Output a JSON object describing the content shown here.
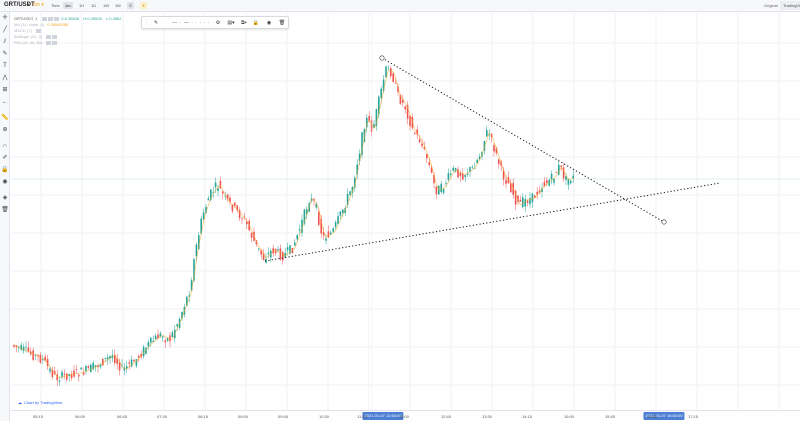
{
  "topbar": {
    "symbol": "GRT/USDT",
    "timeframe_label": "Time",
    "timeframes": [
      "1m",
      "1H",
      "1D",
      "1W",
      "1M"
    ],
    "active_timeframe": "1m",
    "right_links": [
      "Original",
      "TradingView"
    ]
  },
  "legend": {
    "pair": "GRTUSDT, 1",
    "open": "O:0.39526",
    "high": "H:0.39526",
    "low": "L:0.3952",
    "ma_label": "MA (14, close, 0)",
    "ma_value": "0.39548289",
    "ind2": "MACD (7)",
    "ind3": "Bollinger (20, 2)",
    "ind4": "RSI (14, 40, 60)"
  },
  "xaxis": {
    "ticks": [
      "05:15",
      "06:00",
      "06:45",
      "07:30",
      "08:15",
      "09:00",
      "09:45",
      "10:30",
      "11:15",
      "12:00",
      "12:45",
      "13:30",
      "14:15",
      "15:00",
      "15:45",
      "16:30",
      "17:15"
    ],
    "cursor_left": "2021-01-07 12:53:00",
    "cursor_right": "2021-01-07 16:53:00"
  },
  "watermark": "Chart by TradingView",
  "colors": {
    "up": "#26a69a",
    "down": "#ef5350",
    "ma": "#f5a623",
    "axis_accent": "#4a7fd4"
  }
}
